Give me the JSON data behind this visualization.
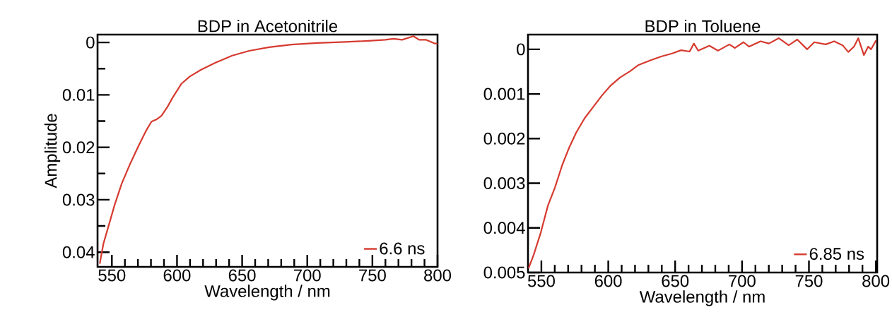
{
  "chart_data": [
    {
      "type": "line",
      "title": "BDP in Acetonitrile",
      "xlabel": "Wavelength / nm",
      "ylabel": "Amplitude",
      "legend": "bottom right",
      "xlim": [
        539,
        800
      ],
      "ylim": [
        0.0428,
        -0.0015
      ],
      "xticks": [
        550,
        {
          "value": 560,
          "label": null
        },
        {
          "value": 570,
          "label": null
        },
        {
          "value": 580,
          "label": null
        },
        {
          "value": 590,
          "label": null
        },
        600,
        {
          "value": 610,
          "label": null
        },
        {
          "value": 620,
          "label": null
        },
        {
          "value": 630,
          "label": null
        },
        {
          "value": 640,
          "label": null
        },
        650,
        {
          "value": 660,
          "label": null
        },
        {
          "value": 670,
          "label": null
        },
        {
          "value": 680,
          "label": null
        },
        {
          "value": 690,
          "label": null
        },
        700,
        {
          "value": 710,
          "label": null
        },
        {
          "value": 720,
          "label": null
        },
        {
          "value": 730,
          "label": null
        },
        {
          "value": 740,
          "label": null
        },
        750,
        {
          "value": 760,
          "label": null
        },
        {
          "value": 770,
          "label": null
        },
        {
          "value": 780,
          "label": null
        },
        {
          "value": 790,
          "label": null
        },
        800
      ],
      "yticks": [
        0,
        {
          "value": 0.005,
          "label": null
        },
        0.01,
        {
          "value": 0.015,
          "label": null
        },
        0.02,
        {
          "value": 0.025,
          "label": null
        },
        0.03,
        {
          "value": 0.035,
          "label": null
        },
        0.04
      ],
      "x": [
        540.7,
        543.5,
        547.8,
        552.2,
        557.6,
        564.1,
        570.7,
        576.1,
        580.4,
        584.1,
        588.0,
        592.4,
        596.7,
        603.3,
        609.8,
        618.5,
        629.3,
        642.4,
        655.4,
        670.7,
        688.0,
        707.6,
        729.3,
        746.7,
        759.8,
        766.3,
        772.8,
        781.5,
        785.9,
        791.3,
        797.8,
        800
      ],
      "series": [
        {
          "name": "6.6 ns",
          "color": "#d63a2f",
          "values": [
            0.0422,
            0.0384,
            0.0347,
            0.0309,
            0.0269,
            0.0231,
            0.0196,
            0.0169,
            0.0151,
            0.0147,
            0.014,
            0.0124,
            0.0105,
            0.0079,
            0.0065,
            0.0052,
            0.0039,
            0.0025,
            0.0016,
            0.0009,
            0.0004,
            0.0001,
            -0.0001,
            -0.0003,
            -0.0005,
            -0.0007,
            -0.0005,
            -0.0012,
            -0.0005,
            -0.0005,
            0.0002,
            0.0002
          ]
        }
      ]
    },
    {
      "type": "line",
      "title": "BDP in Toluene",
      "xlabel": "Wavelength / nm",
      "legend": "bottom right",
      "xlim": [
        540,
        801
      ],
      "ylim": [
        0.005,
        -0.00033
      ],
      "xticks": [
        550,
        {
          "value": 560,
          "label": null
        },
        {
          "value": 570,
          "label": null
        },
        {
          "value": 580,
          "label": null
        },
        {
          "value": 590,
          "label": null
        },
        600,
        {
          "value": 610,
          "label": null
        },
        {
          "value": 620,
          "label": null
        },
        {
          "value": 630,
          "label": null
        },
        {
          "value": 640,
          "label": null
        },
        650,
        {
          "value": 660,
          "label": null
        },
        {
          "value": 670,
          "label": null
        },
        {
          "value": 680,
          "label": null
        },
        {
          "value": 690,
          "label": null
        },
        700,
        {
          "value": 710,
          "label": null
        },
        {
          "value": 720,
          "label": null
        },
        {
          "value": 730,
          "label": null
        },
        {
          "value": 740,
          "label": null
        },
        750,
        {
          "value": 760,
          "label": null
        },
        {
          "value": 770,
          "label": null
        },
        {
          "value": 780,
          "label": null
        },
        {
          "value": 790,
          "label": null
        },
        800
      ],
      "yticks": [
        0,
        0.001,
        0.002,
        0.003,
        0.004,
        0.005
      ],
      "x": [
        540.5,
        544.3,
        549.6,
        554.9,
        560.1,
        565.5,
        570.8,
        576.1,
        582.4,
        588.8,
        595.1,
        601.5,
        608.9,
        616.3,
        622.7,
        631.1,
        639.6,
        648.1,
        654.4,
        660.8,
        664.0,
        667.2,
        675.6,
        682.0,
        690.5,
        694.7,
        701.1,
        705.3,
        713.8,
        720.1,
        727.5,
        734.9,
        741.3,
        748.7,
        754.0,
        762.5,
        768.9,
        775.2,
        779.4,
        783.7,
        786.9,
        791.1,
        794.3,
        796.4,
        800.2
      ],
      "series": [
        {
          "name": "6.85 ns",
          "color": "#d63a2f",
          "values": [
            0.0049,
            0.0046,
            0.0041,
            0.0035,
            0.0031,
            0.0026,
            0.0022,
            0.00186,
            0.00154,
            0.00129,
            0.00104,
            0.00082,
            0.00063,
            0.00049,
            0.00035,
            0.00025,
            0.00016,
            9e-05,
            2e-05,
            5e-05,
            -0.00013,
            3e-05,
            -8e-05,
            3e-05,
            -0.00011,
            -3e-05,
            -0.00016,
            -6e-05,
            -0.00018,
            -0.00013,
            -0.00025,
            -9e-05,
            -0.00022,
            0,
            -0.00016,
            -0.00011,
            -0.00018,
            -9e-05,
            6e-05,
            -6e-05,
            -0.00025,
            0.00013,
            -6e-05,
            0,
            -0.0002
          ]
        }
      ]
    }
  ]
}
